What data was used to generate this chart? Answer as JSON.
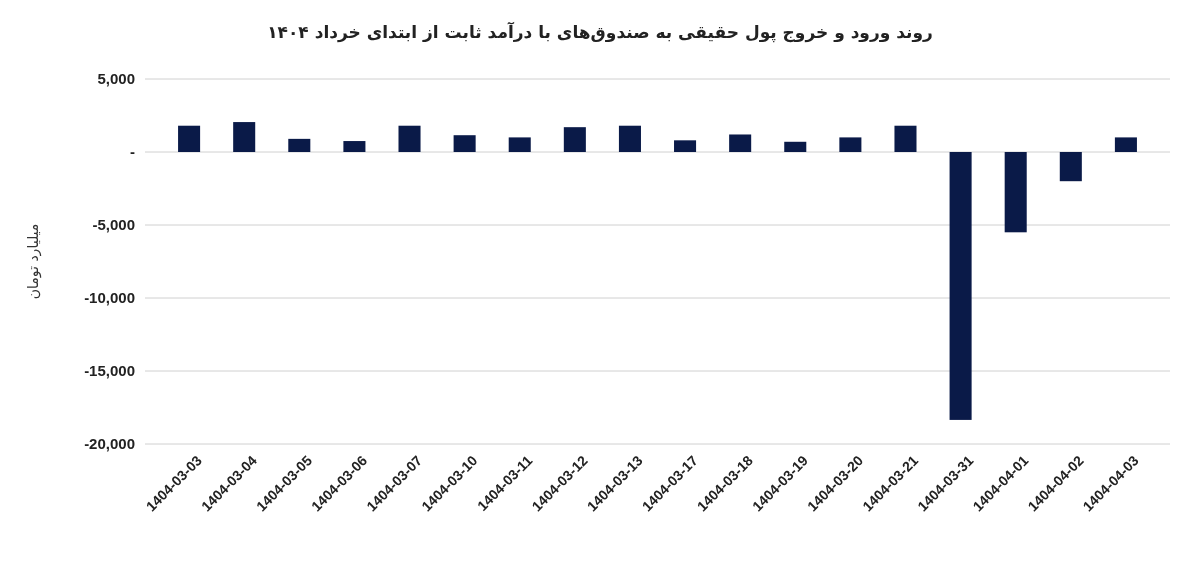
{
  "chart_data": {
    "type": "bar",
    "title": "روند ورود و خروج پول حقیقی به صندوق‌های با درآمد ثابت از ابتدای خرداد ۱۴۰۴",
    "ylabel": "میلیارد تومان",
    "categories": [
      "1404-03-03",
      "1404-03-04",
      "1404-03-05",
      "1404-03-06",
      "1404-03-07",
      "1404-03-10",
      "1404-03-11",
      "1404-03-12",
      "1404-03-13",
      "1404-03-17",
      "1404-03-18",
      "1404-03-19",
      "1404-03-20",
      "1404-03-21",
      "1404-03-31",
      "1404-04-01",
      "1404-04-02",
      "1404-04-03"
    ],
    "values": [
      1800,
      2050,
      900,
      750,
      1800,
      1150,
      1000,
      1700,
      1800,
      800,
      1200,
      700,
      1000,
      1800,
      -18350,
      -5500,
      -2000,
      1000
    ],
    "color": "#0a1a48",
    "ylim": [
      -20000,
      5000
    ],
    "yticks": [
      {
        "value": -20000,
        "label": "-20,000"
      },
      {
        "value": -15000,
        "label": "-15,000"
      },
      {
        "value": -10000,
        "label": "-10,000"
      },
      {
        "value": -5000,
        "label": "-5,000"
      },
      {
        "value": 0,
        "label": "-"
      },
      {
        "value": 5000,
        "label": "5,000"
      }
    ],
    "grid": "y"
  }
}
